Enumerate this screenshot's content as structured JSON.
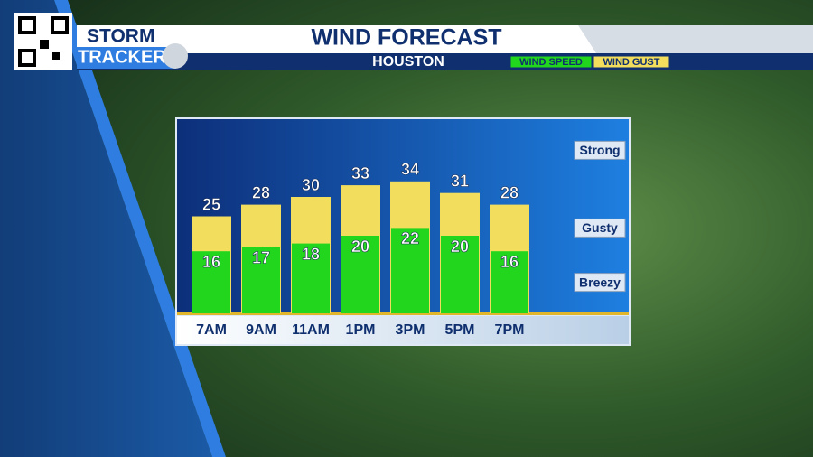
{
  "branding": {
    "line1": "STORM",
    "line2": "TRACKER"
  },
  "chart_data": {
    "type": "bar",
    "title": "WIND FORECAST",
    "subtitle": "HOUSTON",
    "categories": [
      "7AM",
      "9AM",
      "11AM",
      "1PM",
      "3PM",
      "5PM",
      "7PM"
    ],
    "series": [
      {
        "name": "WIND GUST",
        "color": "#f2dd5c",
        "values": [
          25,
          28,
          30,
          33,
          34,
          31,
          28
        ]
      },
      {
        "name": "WIND SPEED",
        "color": "#22d61e",
        "values": [
          16,
          17,
          18,
          20,
          22,
          20,
          16
        ]
      }
    ],
    "ylim": [
      0,
      50
    ],
    "yticks": [
      {
        "value": 8,
        "label": "Breezy"
      },
      {
        "value": 22,
        "label": "Gusty"
      },
      {
        "value": 42,
        "label": "Strong"
      }
    ]
  }
}
